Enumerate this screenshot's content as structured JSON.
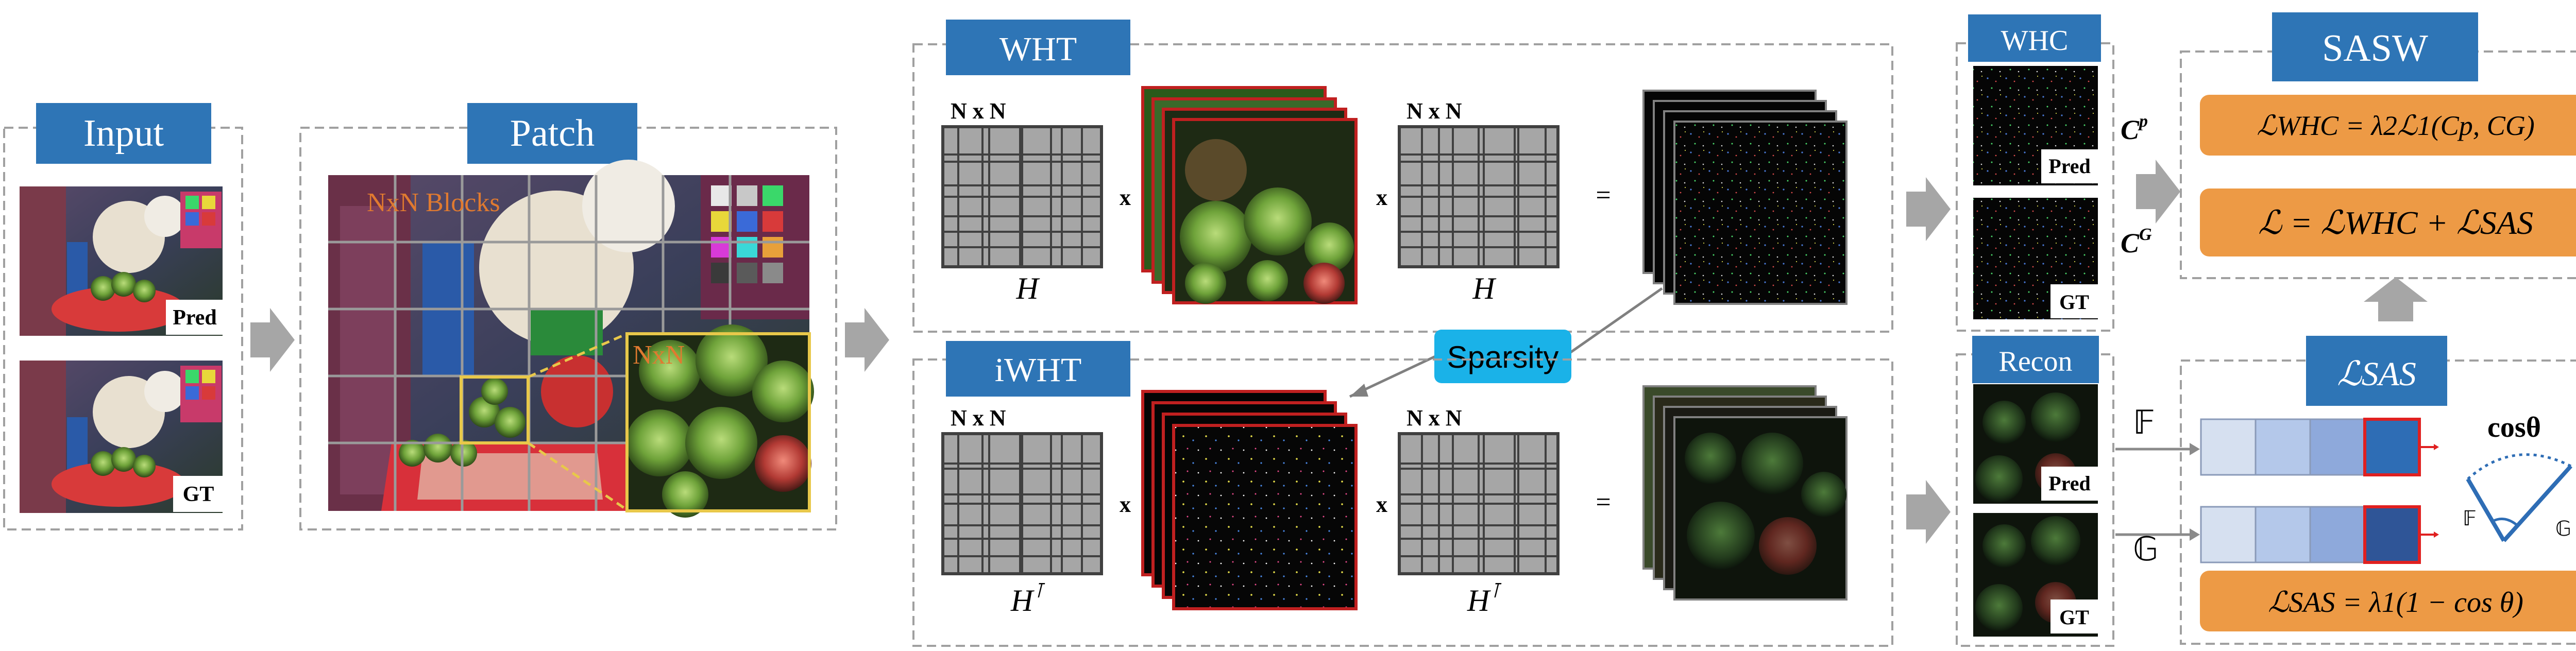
{
  "sections": {
    "input": "Input",
    "patch": "Patch",
    "wht": "WHT",
    "iwht": "iWHT",
    "whc": "WHC",
    "recon": "Recon",
    "sasw": "SASW",
    "sas_title": "ℒSAS"
  },
  "labels": {
    "pred": "Pred",
    "gt": "GT",
    "blocks": "NxN Blocks",
    "nxn": "NxN",
    "matrix_dim": "N x N",
    "times": "x",
    "equals": "=",
    "h": "H",
    "h_transpose": "H",
    "transpose_mark": "⊺",
    "sparsity": "Sparsity",
    "cp": "C",
    "cp_sup": "p",
    "cg": "C",
    "cg_sup": "G",
    "f_symbol": "𝔽",
    "g_symbol": "𝔾",
    "cos_theta": "cosθ"
  },
  "formulas": {
    "whc_loss": "ℒWHC = λ2ℒ1(Cp, CG)",
    "total_loss": "ℒ = ℒWHC + ℒSAS",
    "sas_loss": "ℒSAS = λ1(1 − cos θ)"
  },
  "colors": {
    "title_blue": "#2e75b6",
    "formula_orange": "#ed9a45",
    "sparsity_cyan": "#1ab2e8",
    "grid_gray": "#a6a6a6",
    "arrow_gray": "#a6a6a6",
    "dashed_border": "#a0a0a0",
    "vector_light": "#d6e0f0",
    "vector_mid": "#a9c0e4",
    "vector_mid2": "#8ea9db",
    "vector_dark": "#2e6db5",
    "vector_darker": "#2f5597",
    "highlight_red": "#e02020",
    "patch_yellow": "#e8c84a"
  },
  "icons": {
    "arrow": "right-arrow-icon",
    "up_arrow": "up-arrow-icon",
    "angle": "angle-diagram-icon"
  }
}
